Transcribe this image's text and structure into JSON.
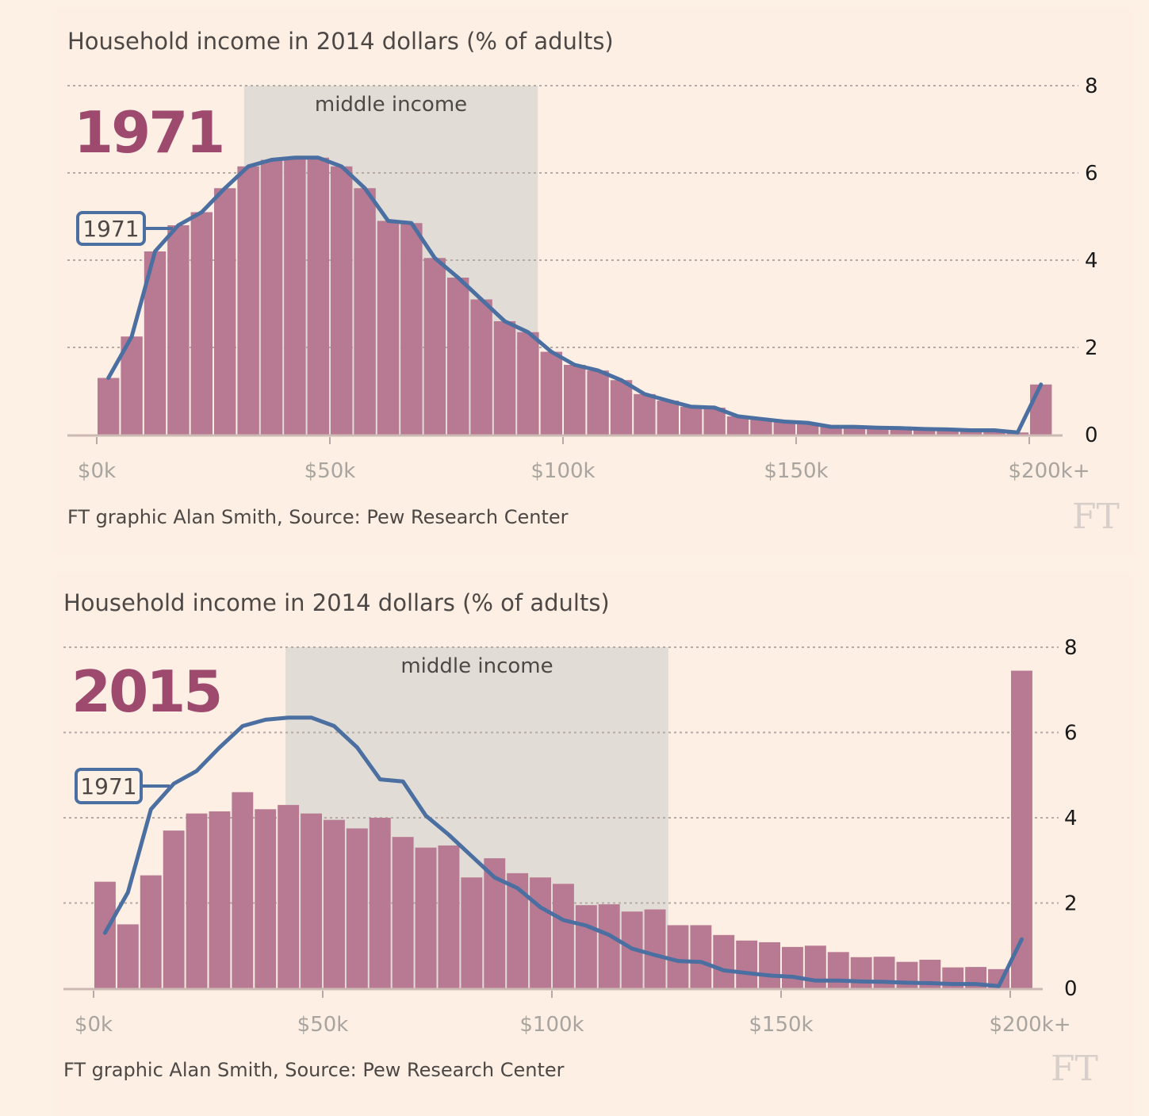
{
  "colors": {
    "background": "#fdf1e6",
    "bar": "#b87a92",
    "line": "#4a6fa0",
    "shading": "#e2dcd7",
    "year": "#9d4a6e"
  },
  "chart_data": [
    {
      "type": "bar",
      "title": "Household income in 2014 dollars (% of adults)",
      "year_label": "1971",
      "line_label": "1971",
      "shaded_label": "middle income",
      "middle_income_range_k": [
        31.6,
        94.6
      ],
      "xlabel": "",
      "ylabel": "% of adults",
      "ylim": [
        0,
        8
      ],
      "yticks": [
        "0",
        "2",
        "4",
        "6",
        "8"
      ],
      "xticks": [
        {
          "value": 0,
          "label": "$0k"
        },
        {
          "value": 50,
          "label": "$50k"
        },
        {
          "value": 100,
          "label": "$100k"
        },
        {
          "value": 150,
          "label": "$150k"
        },
        {
          "value": 200,
          "label": "$200k+"
        }
      ],
      "bin_width_k": 5,
      "bars": [
        1.3,
        2.25,
        4.2,
        4.8,
        5.1,
        5.65,
        6.15,
        6.3,
        6.35,
        6.35,
        6.15,
        5.65,
        4.9,
        4.85,
        4.05,
        3.6,
        3.1,
        2.6,
        2.35,
        1.9,
        1.6,
        1.47,
        1.25,
        0.93,
        0.78,
        0.64,
        0.62,
        0.42,
        0.36,
        0.3,
        0.27,
        0.18,
        0.18,
        0.16,
        0.15,
        0.13,
        0.12,
        0.1,
        0.1,
        0.05,
        1.15
      ],
      "line_1971": [
        1.3,
        2.25,
        4.2,
        4.8,
        5.1,
        5.65,
        6.15,
        6.3,
        6.35,
        6.35,
        6.15,
        5.65,
        4.9,
        4.85,
        4.05,
        3.6,
        3.1,
        2.6,
        2.35,
        1.9,
        1.6,
        1.47,
        1.25,
        0.93,
        0.78,
        0.64,
        0.62,
        0.42,
        0.36,
        0.3,
        0.27,
        0.18,
        0.18,
        0.16,
        0.15,
        0.13,
        0.12,
        0.1,
        0.1,
        0.05,
        1.15
      ],
      "source": "FT graphic Alan Smith, Source: Pew Research Center",
      "logo": "FT"
    },
    {
      "type": "bar",
      "title": "Household income in 2014 dollars (% of adults)",
      "year_label": "2015",
      "line_label": "1971",
      "shaded_label": "middle income",
      "middle_income_range_k": [
        41.9,
        125.4
      ],
      "xlabel": "",
      "ylabel": "% of adults",
      "ylim": [
        0,
        8
      ],
      "yticks": [
        "0",
        "2",
        "4",
        "6",
        "8"
      ],
      "xticks": [
        {
          "value": 0,
          "label": "$0k"
        },
        {
          "value": 50,
          "label": "$50k"
        },
        {
          "value": 100,
          "label": "$100k"
        },
        {
          "value": 150,
          "label": "$150k"
        },
        {
          "value": 200,
          "label": "$200k+"
        }
      ],
      "bin_width_k": 5,
      "bars": [
        2.5,
        1.5,
        2.65,
        3.7,
        4.1,
        4.15,
        4.6,
        4.2,
        4.3,
        4.1,
        3.95,
        3.75,
        4.0,
        3.55,
        3.3,
        3.35,
        2.6,
        3.05,
        2.7,
        2.6,
        2.45,
        1.95,
        1.97,
        1.8,
        1.85,
        1.48,
        1.48,
        1.25,
        1.12,
        1.08,
        0.97,
        1.0,
        0.85,
        0.73,
        0.74,
        0.62,
        0.67,
        0.49,
        0.5,
        0.45,
        7.45
      ],
      "line_1971": [
        1.3,
        2.25,
        4.2,
        4.8,
        5.1,
        5.65,
        6.15,
        6.3,
        6.35,
        6.35,
        6.15,
        5.65,
        4.9,
        4.85,
        4.05,
        3.6,
        3.1,
        2.6,
        2.35,
        1.9,
        1.6,
        1.47,
        1.25,
        0.93,
        0.78,
        0.64,
        0.62,
        0.42,
        0.36,
        0.3,
        0.27,
        0.18,
        0.18,
        0.16,
        0.15,
        0.13,
        0.12,
        0.1,
        0.1,
        0.05,
        1.15
      ],
      "source": "FT graphic Alan Smith, Source: Pew Research Center",
      "logo": "FT"
    }
  ]
}
